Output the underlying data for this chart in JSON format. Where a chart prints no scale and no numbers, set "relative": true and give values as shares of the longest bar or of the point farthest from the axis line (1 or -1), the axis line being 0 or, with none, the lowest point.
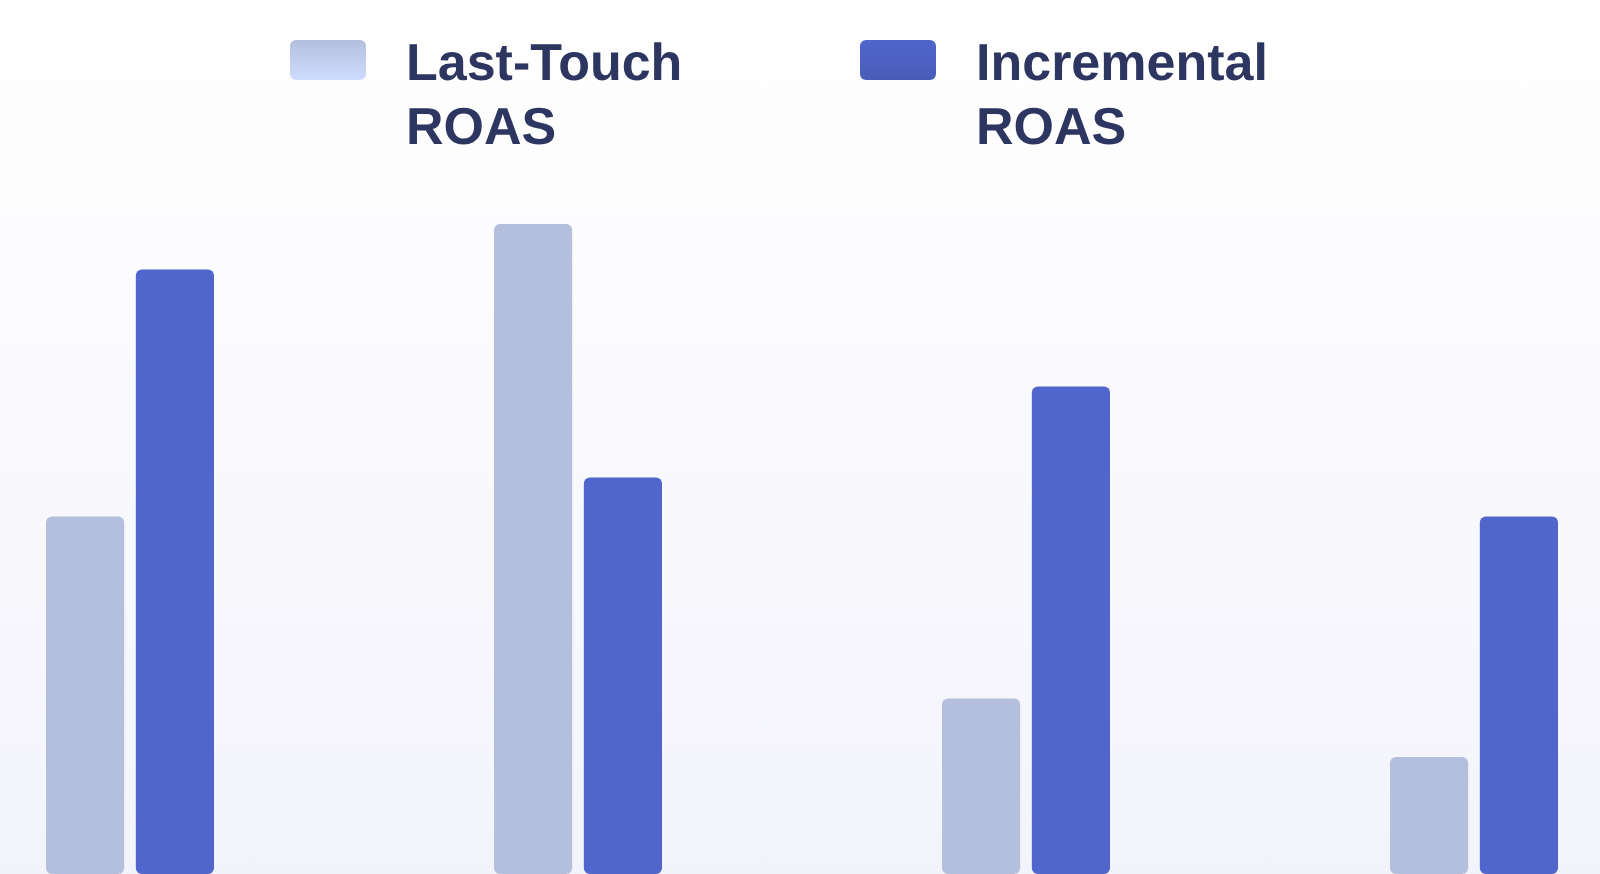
{
  "chart_data": {
    "type": "bar",
    "relative": true,
    "categories": [
      null,
      null,
      null,
      null
    ],
    "legend": "top",
    "series": [
      {
        "name": "Last-Touch ROAS",
        "color": "#b3bfdc",
        "values": [
          0.55,
          1,
          0.27,
          0.18
        ]
      },
      {
        "name": "Incremental ROAS",
        "color": "#5066cc",
        "values": [
          0.93,
          0.61,
          0.75,
          0.55
        ]
      }
    ]
  }
}
